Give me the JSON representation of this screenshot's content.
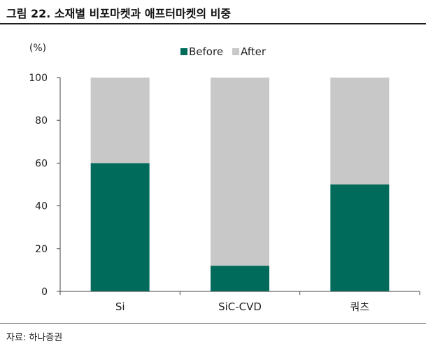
{
  "figure": {
    "title": "그림 22. 소재별 비포마켓과 애프터마켓의 비중",
    "source": "자료: 하나증권"
  },
  "chart_data": {
    "type": "bar",
    "stacked": true,
    "categories": [
      "Si",
      "SiC-CVD",
      "쿼츠"
    ],
    "series": [
      {
        "name": "Before",
        "values": [
          60,
          12,
          50
        ],
        "color": "#006b5b"
      },
      {
        "name": "After",
        "values": [
          40,
          88,
          50
        ],
        "color": "#c8c8c8"
      }
    ],
    "unit_label": "(%)",
    "ylim": [
      0,
      100
    ],
    "yticks": [
      0,
      20,
      40,
      60,
      80,
      100
    ],
    "legend_position": "top-center",
    "grid": false
  }
}
